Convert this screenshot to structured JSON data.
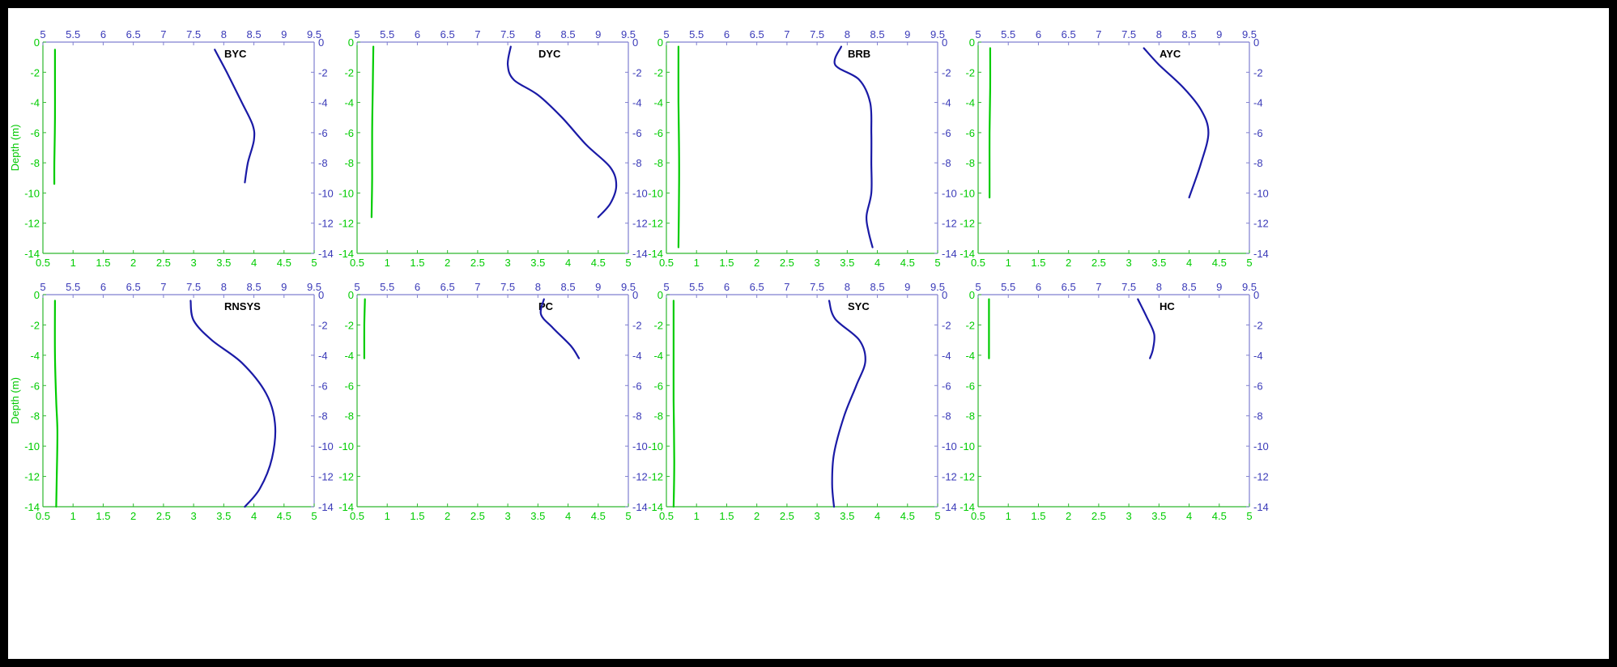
{
  "colors": {
    "green": "#00cc00",
    "blue": "#1a1aa6",
    "axis_green": "#2db82d",
    "axis_blue": "#7f7fd0",
    "text_blue": "#3a3ab8"
  },
  "chart_data": [
    {
      "type": "line",
      "title": "BYC",
      "ylabel": "Depth (m)",
      "xlim_bottom": [
        0.5,
        5
      ],
      "xlim_top": [
        5,
        9.5
      ],
      "ylim": [
        -14,
        0
      ],
      "xticks_bottom": [
        "0.5",
        "1",
        "1.5",
        "2",
        "2.5",
        "3",
        "3.5",
        "4",
        "4.5",
        "5"
      ],
      "xticks_top": [
        "5",
        "5.5",
        "6",
        "6.5",
        "7",
        "7.5",
        "8",
        "8.5",
        "9",
        "9.5"
      ],
      "yticks": [
        "0",
        "-2",
        "-4",
        "-6",
        "-8",
        "-10",
        "-12",
        "-14"
      ],
      "series": [
        {
          "color": "green",
          "axis": "bottom",
          "x": [
            0.7,
            0.7,
            0.7,
            0.69,
            0.69
          ],
          "y": [
            -0.5,
            -2,
            -5,
            -8,
            -9.4
          ]
        },
        {
          "color": "blue",
          "axis": "top",
          "x": [
            7.85,
            8.05,
            8.3,
            8.48,
            8.5,
            8.4,
            8.35
          ],
          "y": [
            -0.5,
            -2,
            -4,
            -5.5,
            -6.5,
            -8,
            -9.3
          ]
        }
      ]
    },
    {
      "type": "line",
      "title": "DYC",
      "ylabel": "",
      "xlim_bottom": [
        0.5,
        5
      ],
      "xlim_top": [
        5,
        9.5
      ],
      "ylim": [
        -14,
        0
      ],
      "xticks_bottom": [
        "0.5",
        "1",
        "1.5",
        "2",
        "2.5",
        "3",
        "3.5",
        "4",
        "4.5",
        "5"
      ],
      "xticks_top": [
        "5",
        "5.5",
        "6",
        "6.5",
        "7",
        "7.5",
        "8",
        "8.5",
        "9",
        "9.5"
      ],
      "yticks": [
        "0",
        "-2",
        "-4",
        "-6",
        "-8",
        "-10",
        "-12",
        "-14"
      ],
      "series": [
        {
          "color": "green",
          "axis": "bottom",
          "x": [
            0.77,
            0.76,
            0.75,
            0.75,
            0.74
          ],
          "y": [
            -0.3,
            -3,
            -6,
            -9,
            -11.6
          ]
        },
        {
          "color": "blue",
          "axis": "top",
          "x": [
            7.55,
            7.5,
            7.6,
            8.0,
            8.4,
            8.8,
            9.2,
            9.3,
            9.2,
            9.0
          ],
          "y": [
            -0.3,
            -1.5,
            -2.5,
            -3.5,
            -5.0,
            -6.8,
            -8.3,
            -9.5,
            -10.7,
            -11.6
          ]
        }
      ]
    },
    {
      "type": "line",
      "title": "BRB",
      "ylabel": "",
      "xlim_bottom": [
        0.5,
        5
      ],
      "xlim_top": [
        5,
        9.5
      ],
      "ylim": [
        -14,
        0
      ],
      "xticks_bottom": [
        "0.5",
        "1",
        "1.5",
        "2",
        "2.5",
        "3",
        "3.5",
        "4",
        "4.5",
        "5"
      ],
      "xticks_top": [
        "5",
        "5.5",
        "6",
        "6.5",
        "7",
        "7.5",
        "8",
        "8.5",
        "9",
        "9.5"
      ],
      "yticks": [
        "0",
        "-2",
        "-4",
        "-6",
        "-8",
        "-10",
        "-12",
        "-14"
      ],
      "series": [
        {
          "color": "green",
          "axis": "bottom",
          "x": [
            0.7,
            0.7,
            0.71,
            0.71,
            0.7
          ],
          "y": [
            -0.3,
            -4,
            -7,
            -10,
            -13.6
          ]
        },
        {
          "color": "blue",
          "axis": "top",
          "x": [
            7.9,
            7.8,
            8.2,
            8.38,
            8.4,
            8.4,
            8.4,
            8.32,
            8.35,
            8.42
          ],
          "y": [
            -0.3,
            -1.5,
            -2.5,
            -4,
            -6,
            -8,
            -10,
            -11.5,
            -12.5,
            -13.6
          ]
        }
      ]
    },
    {
      "type": "line",
      "title": "AYC",
      "ylabel": "",
      "xlim_bottom": [
        0.5,
        5
      ],
      "xlim_top": [
        5,
        9.5
      ],
      "ylim": [
        -14,
        0
      ],
      "xticks_bottom": [
        "0.5",
        "1",
        "1.5",
        "2",
        "2.5",
        "3",
        "3.5",
        "4",
        "4.5",
        "5"
      ],
      "xticks_top": [
        "5",
        "5.5",
        "6",
        "6.5",
        "7",
        "7.5",
        "8",
        "8.5",
        "9",
        "9.5"
      ],
      "yticks": [
        "0",
        "-2",
        "-4",
        "-6",
        "-8",
        "-10",
        "-12",
        "-14"
      ],
      "series": [
        {
          "color": "green",
          "axis": "bottom",
          "x": [
            0.7,
            0.7,
            0.69,
            0.69,
            0.69
          ],
          "y": [
            -0.4,
            -3,
            -6,
            -9,
            -10.3
          ]
        },
        {
          "color": "blue",
          "axis": "top",
          "x": [
            7.75,
            8.0,
            8.4,
            8.7,
            8.82,
            8.7,
            8.5
          ],
          "y": [
            -0.4,
            -1.5,
            -3,
            -4.5,
            -6,
            -8,
            -10.3
          ]
        }
      ]
    },
    {
      "type": "line",
      "title": "RNSYS",
      "ylabel": "Depth (m)",
      "xlim_bottom": [
        0.5,
        5
      ],
      "xlim_top": [
        5,
        9.5
      ],
      "ylim": [
        -14,
        0
      ],
      "xticks_bottom": [
        "0.5",
        "1",
        "1.5",
        "2",
        "2.5",
        "3",
        "3.5",
        "4",
        "4.5",
        "5"
      ],
      "xticks_top": [
        "5",
        "5.5",
        "6",
        "6.5",
        "7",
        "7.5",
        "8",
        "8.5",
        "9",
        "9.5"
      ],
      "yticks": [
        "0",
        "-2",
        "-4",
        "-6",
        "-8",
        "-10",
        "-12",
        "-14"
      ],
      "series": [
        {
          "color": "green",
          "axis": "bottom",
          "x": [
            0.7,
            0.7,
            0.72,
            0.74,
            0.73,
            0.72
          ],
          "y": [
            -0.4,
            -4,
            -7,
            -9,
            -12,
            -14
          ]
        },
        {
          "color": "blue",
          "axis": "top",
          "x": [
            7.45,
            7.5,
            7.8,
            8.3,
            8.7,
            8.85,
            8.8,
            8.6,
            8.35
          ],
          "y": [
            -0.4,
            -1.7,
            -3,
            -4.5,
            -6.5,
            -8.5,
            -10.8,
            -12.8,
            -14
          ]
        }
      ]
    },
    {
      "type": "line",
      "title": "PC",
      "ylabel": "",
      "xlim_bottom": [
        0.5,
        5
      ],
      "xlim_top": [
        5,
        9.5
      ],
      "ylim": [
        -14,
        0
      ],
      "xticks_bottom": [
        "0.5",
        "1",
        "1.5",
        "2",
        "2.5",
        "3",
        "3.5",
        "4",
        "4.5",
        "5"
      ],
      "xticks_top": [
        "5",
        "5.5",
        "6",
        "6.5",
        "7",
        "7.5",
        "8",
        "8.5",
        "9",
        "9.5"
      ],
      "yticks": [
        "0",
        "-2",
        "-4",
        "-6",
        "-8",
        "-10",
        "-12",
        "-14"
      ],
      "series": [
        {
          "color": "green",
          "axis": "bottom",
          "x": [
            0.63,
            0.62,
            0.62
          ],
          "y": [
            -0.3,
            -2,
            -4.2
          ]
        },
        {
          "color": "blue",
          "axis": "top",
          "x": [
            8.1,
            8.05,
            8.25,
            8.55,
            8.68
          ],
          "y": [
            -0.3,
            -1.3,
            -2.2,
            -3.4,
            -4.2
          ]
        }
      ]
    },
    {
      "type": "line",
      "title": "SYC",
      "ylabel": "",
      "xlim_bottom": [
        0.5,
        5
      ],
      "xlim_top": [
        5,
        9.5
      ],
      "ylim": [
        -14,
        0
      ],
      "xticks_bottom": [
        "0.5",
        "1",
        "1.5",
        "2",
        "2.5",
        "3",
        "3.5",
        "4",
        "4.5",
        "5"
      ],
      "xticks_top": [
        "5",
        "5.5",
        "6",
        "6.5",
        "7",
        "7.5",
        "8",
        "8.5",
        "9",
        "9.5"
      ],
      "yticks": [
        "0",
        "-2",
        "-4",
        "-6",
        "-8",
        "-10",
        "-12",
        "-14"
      ],
      "series": [
        {
          "color": "green",
          "axis": "bottom",
          "x": [
            0.62,
            0.62,
            0.62,
            0.63,
            0.62
          ],
          "y": [
            -0.4,
            -4,
            -7,
            -11,
            -14
          ]
        },
        {
          "color": "blue",
          "axis": "top",
          "x": [
            7.7,
            7.8,
            8.2,
            8.3,
            8.15,
            7.95,
            7.78,
            7.75,
            7.78
          ],
          "y": [
            -0.4,
            -1.6,
            -3,
            -4.4,
            -6,
            -8,
            -10.5,
            -12.5,
            -14
          ]
        }
      ]
    },
    {
      "type": "line",
      "title": "HC",
      "ylabel": "",
      "xlim_bottom": [
        0.5,
        5
      ],
      "xlim_top": [
        5,
        9.5
      ],
      "ylim": [
        -14,
        0
      ],
      "xticks_bottom": [
        "0.5",
        "1",
        "1.5",
        "2",
        "2.5",
        "3",
        "3.5",
        "4",
        "4.5",
        "5"
      ],
      "xticks_top": [
        "5",
        "5.5",
        "6",
        "6.5",
        "7",
        "7.5",
        "8",
        "8.5",
        "9",
        "9.5"
      ],
      "yticks": [
        "0",
        "-2",
        "-4",
        "-6",
        "-8",
        "-10",
        "-12",
        "-14"
      ],
      "series": [
        {
          "color": "green",
          "axis": "bottom",
          "x": [
            0.68,
            0.68,
            0.68
          ],
          "y": [
            -0.3,
            -2,
            -4.2
          ]
        },
        {
          "color": "blue",
          "axis": "top",
          "x": [
            7.65,
            7.8,
            7.92,
            7.9,
            7.85
          ],
          "y": [
            -0.3,
            -1.5,
            -2.6,
            -3.6,
            -4.2
          ]
        }
      ]
    }
  ]
}
